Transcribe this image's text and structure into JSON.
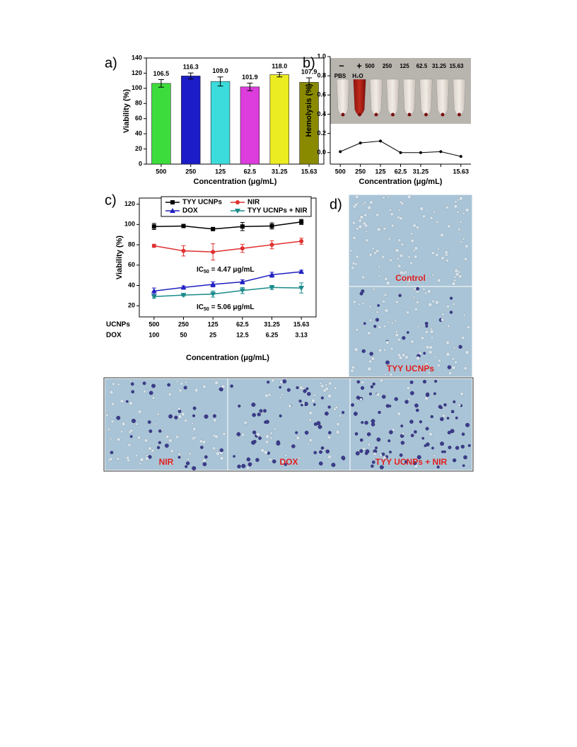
{
  "chart_data": [
    {
      "type": "bar",
      "label": "a)",
      "categories": [
        "500",
        "250",
        "125",
        "62.5",
        "31.25",
        "15.63"
      ],
      "values": [
        106.5,
        116.3,
        109.0,
        101.9,
        118.0,
        107.9
      ],
      "value_labels": [
        "106.5",
        "116.3",
        "109.0",
        "101.9",
        "118.0",
        "107.9"
      ],
      "errors": [
        5,
        4,
        6,
        5,
        3,
        6
      ],
      "colors": [
        "#3ddc3d",
        "#1c1cc8",
        "#3ddcdc",
        "#dc3ddc",
        "#ecec22",
        "#8a8a00"
      ],
      "ylim": [
        0,
        140
      ],
      "yticks": [
        0,
        20,
        40,
        60,
        80,
        100,
        120,
        140
      ],
      "ylabel": "Viability (%)",
      "xlabel": "Concentration (μg/mL)"
    },
    {
      "type": "line",
      "label": "b)",
      "categories": [
        "500",
        "250",
        "125",
        "62.5",
        "31.25",
        null,
        "15.63"
      ],
      "values": [
        0.01,
        0.1,
        0.12,
        0,
        0,
        0.01,
        -0.04
      ],
      "color": "#000000",
      "ylim": [
        -0.12,
        1.0
      ],
      "yticks": [
        {
          "value": 0,
          "label": "0.0"
        },
        {
          "value": 0.2,
          "label": "0.2"
        },
        {
          "value": 0.4,
          "label": "0.4"
        },
        {
          "value": 0.6,
          "label": "0.6"
        },
        {
          "value": 0.8,
          "label": "0.8"
        },
        {
          "value": 1.0,
          "label": "1.0"
        }
      ],
      "ylabel": "Hemolysis (%)",
      "xlabel": "Concentration (μg/mL)",
      "photo_labels": [
        "−",
        "+",
        "500",
        "250",
        "125",
        "62.5",
        "31.25",
        "15.63"
      ],
      "tube_labels": [
        "PBS",
        "H₂O"
      ]
    },
    {
      "type": "line",
      "label": "c)",
      "categories": [
        "500",
        "250",
        "125",
        "62.5",
        "31.25",
        "15.63"
      ],
      "categories2": [
        "100",
        "50",
        "25",
        "12.5",
        "6.25",
        "3.13"
      ],
      "row_labels": [
        "UCNPs",
        "DOX"
      ],
      "series": [
        {
          "name": "TYY UCNPs",
          "color": "#000000",
          "marker": "square",
          "values": [
            98,
            98.5,
            95.5,
            98,
            98.5,
            102.5
          ],
          "errors": [
            3,
            1.5,
            1,
            4,
            3,
            2.5
          ]
        },
        {
          "name": "NIR",
          "color": "#e03030",
          "marker": "circle",
          "values": [
            79,
            74,
            73,
            76.5,
            80,
            83.5
          ],
          "errors": [
            1.5,
            5,
            8,
            4,
            4,
            3
          ]
        },
        {
          "name": "DOX",
          "color": "#2020c0",
          "marker": "triangle-up",
          "values": [
            34.5,
            38,
            41,
            43.5,
            50.5,
            53.5
          ],
          "errors": [
            3,
            1.5,
            2.5,
            2,
            2.5,
            1.5
          ]
        },
        {
          "name": "TYY UCNPs + NIR",
          "color": "#1a8a8a",
          "marker": "triangle-down",
          "values": [
            29,
            30.5,
            31.5,
            35,
            38,
            37.5
          ],
          "errors": [
            1.5,
            1,
            3,
            3,
            2,
            5
          ]
        }
      ],
      "ylim": [
        9,
        126
      ],
      "yticks": [
        20,
        40,
        60,
        80,
        100,
        120
      ],
      "ylabel": "Viability (%)",
      "xlabel": "Concentration (μg/mL)",
      "annotations": [
        {
          "text": "IC",
          "sub": "50",
          "rest": " = 4.47 μg/mL"
        },
        {
          "text": "IC",
          "sub": "50",
          "rest": " = 5.06 μg/mL"
        }
      ]
    }
  ],
  "micrographs": {
    "label": "d)",
    "panels": [
      "Control",
      "TYY UCNPs",
      "NIR",
      "DOX",
      "TYY UCNPs + NIR"
    ]
  }
}
